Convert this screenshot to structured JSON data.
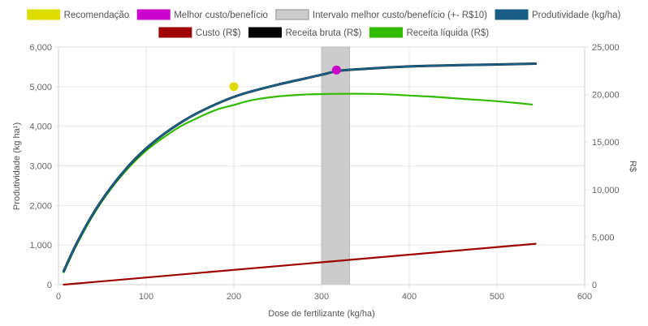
{
  "chart_data": {
    "type": "line",
    "legend_position": "top",
    "grid": true,
    "legend": [
      {
        "name": "Recomendação",
        "color": "#dddd00"
      },
      {
        "name": "Melhor custo/benefício",
        "color": "#cc00cc"
      },
      {
        "name": "Intervalo melhor custo/benefício (+- R$10)",
        "color": "#cccccc"
      },
      {
        "name": "Produtividade (kg/ha)",
        "color": "#1a5e85"
      },
      {
        "name": "Custo (R$)",
        "color": "#9e0000"
      },
      {
        "name": "Receita bruta (R$)",
        "color": "#000000"
      },
      {
        "name": "Receita líquida (R$)",
        "color": "#33bb00"
      }
    ],
    "x_axis": {
      "label": "Dose de fertilizante (kg/ha)",
      "range": [
        0,
        600
      ],
      "ticks": [
        "0",
        "100",
        "200",
        "300",
        "400",
        "500",
        "600"
      ]
    },
    "y_left": {
      "label": "Produtividade (kg ha¹)",
      "range": [
        0,
        6000
      ],
      "ticks": [
        "0",
        "1,000",
        "2,000",
        "3,000",
        "4,000",
        "5,000",
        "6,000"
      ]
    },
    "y_right": {
      "label": "R$",
      "range": [
        0,
        25000
      ],
      "ticks": [
        "0",
        "5,000",
        "10,000",
        "15,000",
        "20,000",
        "25,000"
      ]
    },
    "interval": {
      "x_start": 300,
      "x_end": 332
    },
    "recommendation_point": {
      "x": 200,
      "y": 5000
    },
    "best_point": {
      "x": 317,
      "y": 5420
    },
    "series": [
      {
        "name": "Produtividade (kg/ha)",
        "axis": "left",
        "color": "#1a5e85",
        "x": [
          6,
          20,
          40,
          60,
          80,
          100,
          120,
          140,
          160,
          180,
          200,
          220,
          250,
          280,
          300,
          320,
          350,
          380,
          400,
          430,
          460,
          500,
          544
        ],
        "y": [
          340,
          1010,
          1810,
          2460,
          3000,
          3440,
          3800,
          4100,
          4350,
          4560,
          4740,
          4880,
          5050,
          5200,
          5300,
          5400,
          5450,
          5490,
          5510,
          5530,
          5545,
          5560,
          5580
        ]
      },
      {
        "name": "Receita bruta (R$)",
        "axis": "left",
        "color": "#000000",
        "x": [
          6,
          20,
          40,
          60,
          80,
          100,
          120,
          140,
          160,
          180,
          200,
          220,
          250,
          280,
          300,
          320,
          350,
          380,
          400,
          430,
          460,
          500,
          544
        ],
        "y": [
          340,
          1010,
          1810,
          2460,
          3000,
          3440,
          3800,
          4100,
          4350,
          4560,
          4740,
          4880,
          5050,
          5200,
          5300,
          5400,
          5450,
          5490,
          5510,
          5530,
          5545,
          5560,
          5580
        ]
      },
      {
        "name": "Receita líquida (R$)",
        "axis": "right",
        "color": "#33bb00",
        "x": [
          6,
          20,
          40,
          60,
          80,
          100,
          120,
          140,
          160,
          180,
          200,
          220,
          250,
          280,
          300,
          320,
          350,
          380,
          400,
          430,
          460,
          500,
          540
        ],
        "y": [
          1300,
          4050,
          7400,
          10100,
          12300,
          14100,
          15500,
          16700,
          17600,
          18400,
          18900,
          19400,
          19800,
          20000,
          20050,
          20080,
          20080,
          20000,
          19900,
          19750,
          19550,
          19300,
          18950
        ]
      },
      {
        "name": "Custo (R$)",
        "axis": "right",
        "color": "#9e0000",
        "x": [
          6,
          544
        ],
        "y": [
          0,
          4300
        ]
      }
    ]
  }
}
